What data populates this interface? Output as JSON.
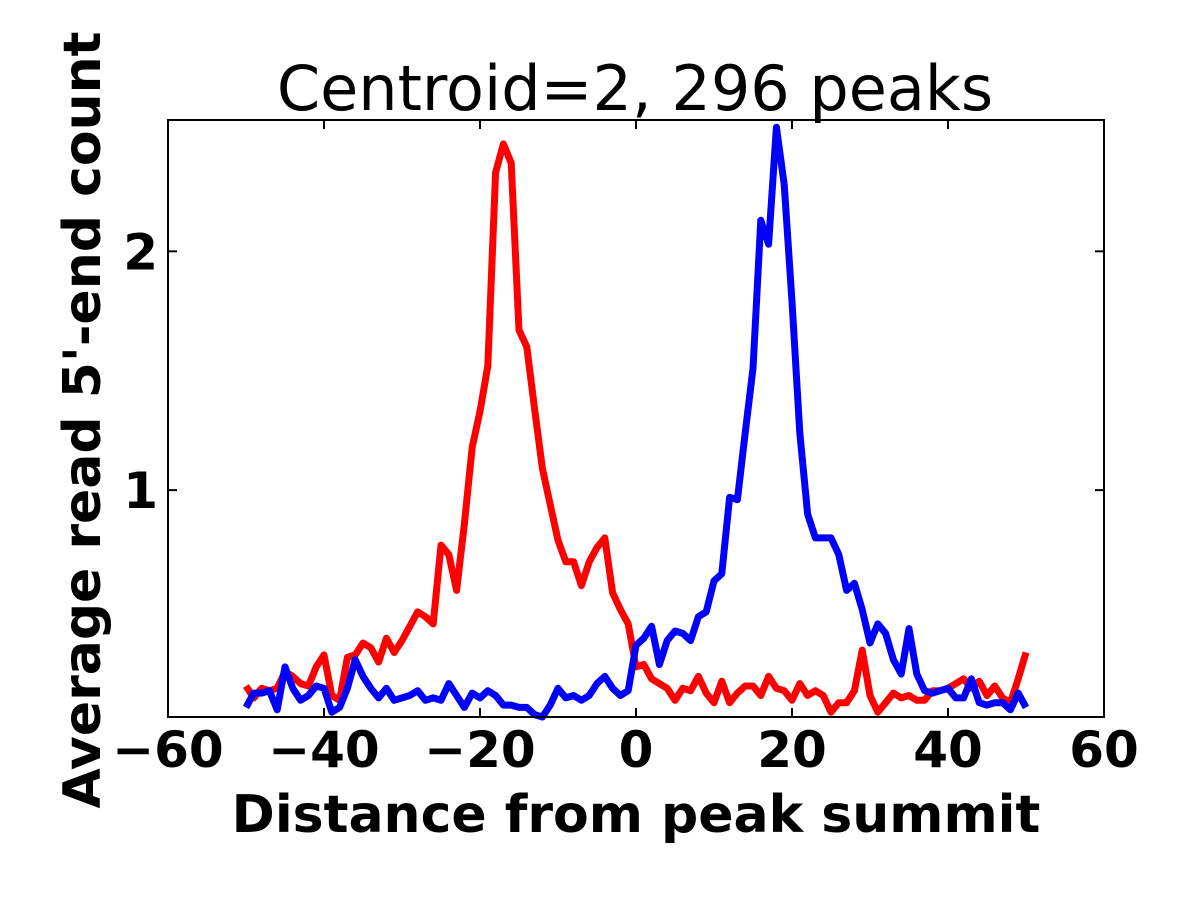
{
  "chart_data": {
    "type": "line",
    "title": "Centroid=2, 296 peaks",
    "xlabel": "Distance from peak summit",
    "ylabel": "Average read 5'-end count",
    "xlim": [
      -60,
      60
    ],
    "ylim": [
      0.05,
      2.55
    ],
    "x_ticks": [
      -60,
      -40,
      -20,
      0,
      20,
      40,
      60
    ],
    "x_tick_labels": [
      "−60",
      "−40",
      "−20",
      "0",
      "20",
      "40",
      "60"
    ],
    "y_ticks": [
      1,
      2
    ],
    "y_tick_labels": [
      "1",
      "2"
    ],
    "grid": false,
    "legend": "none",
    "x": [
      -50,
      -49,
      -48,
      -47,
      -46,
      -45,
      -44,
      -43,
      -42,
      -41,
      -40,
      -39,
      -38,
      -37,
      -36,
      -35,
      -34,
      -33,
      -32,
      -31,
      -30,
      -29,
      -28,
      -27,
      -26,
      -25,
      -24,
      -23,
      -22,
      -21,
      -20,
      -19,
      -18,
      -17,
      -16,
      -15,
      -14,
      -13,
      -12,
      -11,
      -10,
      -9,
      -8,
      -7,
      -6,
      -5,
      -4,
      -3,
      -2,
      -1,
      0,
      1,
      2,
      3,
      4,
      5,
      6,
      7,
      8,
      9,
      10,
      11,
      12,
      13,
      14,
      15,
      16,
      17,
      18,
      19,
      20,
      21,
      22,
      23,
      24,
      25,
      26,
      27,
      28,
      29,
      30,
      31,
      32,
      33,
      34,
      35,
      36,
      37,
      38,
      39,
      40,
      41,
      42,
      43,
      44,
      45,
      46,
      47,
      48,
      49,
      50
    ],
    "series": [
      {
        "color": "#ff0000",
        "values": [
          0.18,
          0.13,
          0.17,
          0.16,
          0.17,
          0.24,
          0.22,
          0.19,
          0.18,
          0.26,
          0.31,
          0.14,
          0.12,
          0.3,
          0.31,
          0.36,
          0.34,
          0.28,
          0.38,
          0.32,
          0.37,
          0.43,
          0.49,
          0.47,
          0.44,
          0.77,
          0.73,
          0.58,
          0.86,
          1.18,
          1.33,
          1.52,
          2.33,
          2.45,
          2.37,
          1.67,
          1.6,
          1.34,
          1.09,
          0.94,
          0.79,
          0.7,
          0.7,
          0.6,
          0.7,
          0.76,
          0.8,
          0.57,
          0.5,
          0.44,
          0.26,
          0.27,
          0.21,
          0.19,
          0.17,
          0.12,
          0.17,
          0.16,
          0.22,
          0.15,
          0.11,
          0.2,
          0.11,
          0.15,
          0.18,
          0.18,
          0.14,
          0.22,
          0.17,
          0.16,
          0.12,
          0.19,
          0.14,
          0.16,
          0.14,
          0.07,
          0.11,
          0.11,
          0.16,
          0.33,
          0.14,
          0.07,
          0.11,
          0.15,
          0.13,
          0.14,
          0.12,
          0.12,
          0.16,
          0.16,
          0.17,
          0.19,
          0.21,
          0.17,
          0.2,
          0.14,
          0.18,
          0.13,
          0.11,
          0.21,
          0.32
        ]
      },
      {
        "color": "#0000ff",
        "values": [
          0.09,
          0.15,
          0.15,
          0.16,
          0.08,
          0.26,
          0.17,
          0.12,
          0.14,
          0.18,
          0.17,
          0.07,
          0.09,
          0.17,
          0.29,
          0.22,
          0.17,
          0.13,
          0.17,
          0.12,
          0.13,
          0.14,
          0.16,
          0.12,
          0.13,
          0.12,
          0.19,
          0.14,
          0.09,
          0.15,
          0.13,
          0.16,
          0.14,
          0.1,
          0.1,
          0.09,
          0.09,
          0.06,
          0.05,
          0.1,
          0.17,
          0.13,
          0.14,
          0.12,
          0.14,
          0.19,
          0.22,
          0.17,
          0.14,
          0.16,
          0.35,
          0.38,
          0.43,
          0.27,
          0.37,
          0.41,
          0.4,
          0.37,
          0.47,
          0.49,
          0.62,
          0.65,
          0.97,
          0.96,
          1.24,
          1.51,
          2.13,
          2.03,
          2.52,
          2.28,
          1.79,
          1.24,
          0.9,
          0.8,
          0.8,
          0.8,
          0.73,
          0.58,
          0.61,
          0.5,
          0.36,
          0.44,
          0.4,
          0.29,
          0.23,
          0.42,
          0.23,
          0.16,
          0.15,
          0.16,
          0.17,
          0.13,
          0.13,
          0.21,
          0.11,
          0.1,
          0.11,
          0.11,
          0.08,
          0.15,
          0.09
        ]
      }
    ]
  }
}
